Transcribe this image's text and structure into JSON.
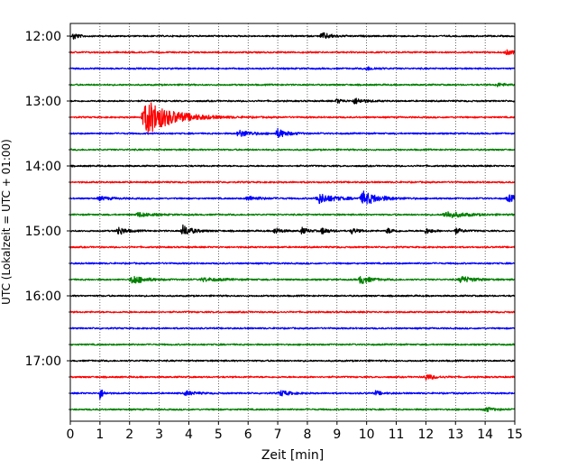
{
  "chart_data": {
    "type": "line",
    "xlabel": "Zeit  [min]",
    "ylabel": "UTC (Lokalzeit = UTC + 01:00)",
    "xlim": [
      0,
      15
    ],
    "x_ticks": [
      "0",
      "1",
      "2",
      "3",
      "4",
      "5",
      "6",
      "7",
      "8",
      "9",
      "10",
      "11",
      "12",
      "13",
      "14",
      "15"
    ],
    "y_tick_labels": [
      "12:00",
      "13:00",
      "14:00",
      "15:00",
      "16:00",
      "17:00"
    ],
    "grid": "vertical dotted lines at each minute",
    "trace_interval_minutes": 15,
    "trace_start": "12:00",
    "trace_count": 24,
    "trace_colors": [
      "#000000",
      "#ff0000",
      "#0000ff",
      "#008000"
    ],
    "events": [
      {
        "trace": 0,
        "t": 0.1,
        "amp": 0.7,
        "w": 0.15
      },
      {
        "trace": 0,
        "t": 8.5,
        "amp": 0.6,
        "w": 0.3
      },
      {
        "trace": 4,
        "t": 9.6,
        "amp": 0.5,
        "w": 0.3
      },
      {
        "trace": 4,
        "t": 9.0,
        "amp": 0.4,
        "w": 0.2
      },
      {
        "trace": 5,
        "t": 2.6,
        "amp": 3.2,
        "w": 0.8
      },
      {
        "trace": 6,
        "t": 5.7,
        "amp": 0.6,
        "w": 0.4
      },
      {
        "trace": 6,
        "t": 7.0,
        "amp": 0.8,
        "w": 0.3
      },
      {
        "trace": 10,
        "t": 6.0,
        "amp": 0.4,
        "w": 0.4
      },
      {
        "trace": 10,
        "t": 8.4,
        "amp": 0.9,
        "w": 0.5
      },
      {
        "trace": 10,
        "t": 9.9,
        "amp": 1.2,
        "w": 0.5
      },
      {
        "trace": 10,
        "t": 14.8,
        "amp": 0.6,
        "w": 0.4
      },
      {
        "trace": 10,
        "t": 1.0,
        "amp": 0.3,
        "w": 0.4
      },
      {
        "trace": 11,
        "t": 12.7,
        "amp": 0.6,
        "w": 0.6
      },
      {
        "trace": 11,
        "t": 2.3,
        "amp": 0.4,
        "w": 0.4
      },
      {
        "trace": 12,
        "t": 1.6,
        "amp": 0.8,
        "w": 0.25
      },
      {
        "trace": 12,
        "t": 3.8,
        "amp": 1.0,
        "w": 0.3
      },
      {
        "trace": 12,
        "t": 6.9,
        "amp": 0.6,
        "w": 0.2
      },
      {
        "trace": 12,
        "t": 7.8,
        "amp": 0.6,
        "w": 0.2
      },
      {
        "trace": 12,
        "t": 8.5,
        "amp": 0.6,
        "w": 0.2
      },
      {
        "trace": 12,
        "t": 9.5,
        "amp": 0.5,
        "w": 0.2
      },
      {
        "trace": 12,
        "t": 10.7,
        "amp": 0.5,
        "w": 0.2
      },
      {
        "trace": 12,
        "t": 12.0,
        "amp": 0.5,
        "w": 0.2
      },
      {
        "trace": 12,
        "t": 13.0,
        "amp": 0.5,
        "w": 0.2
      },
      {
        "trace": 15,
        "t": 2.1,
        "amp": 0.8,
        "w": 0.4
      },
      {
        "trace": 15,
        "t": 9.8,
        "amp": 0.8,
        "w": 0.3
      },
      {
        "trace": 15,
        "t": 13.2,
        "amp": 0.6,
        "w": 0.4
      },
      {
        "trace": 15,
        "t": 4.5,
        "amp": 0.3,
        "w": 0.6
      },
      {
        "trace": 21,
        "t": 12.0,
        "amp": 0.5,
        "w": 0.3
      },
      {
        "trace": 22,
        "t": 1.0,
        "amp": 1.1,
        "w": 0.1
      },
      {
        "trace": 22,
        "t": 7.1,
        "amp": 0.5,
        "w": 0.3
      },
      {
        "trace": 22,
        "t": 10.3,
        "amp": 0.4,
        "w": 0.2
      },
      {
        "trace": 22,
        "t": 3.9,
        "amp": 0.4,
        "w": 0.3
      },
      {
        "trace": 23,
        "t": 14.0,
        "amp": 0.4,
        "w": 0.3
      },
      {
        "trace": 2,
        "t": 10.0,
        "amp": 0.3,
        "w": 0.3
      },
      {
        "trace": 1,
        "t": 14.7,
        "amp": 0.4,
        "w": 0.3
      },
      {
        "trace": 3,
        "t": 14.4,
        "amp": 0.3,
        "w": 0.3
      }
    ]
  }
}
